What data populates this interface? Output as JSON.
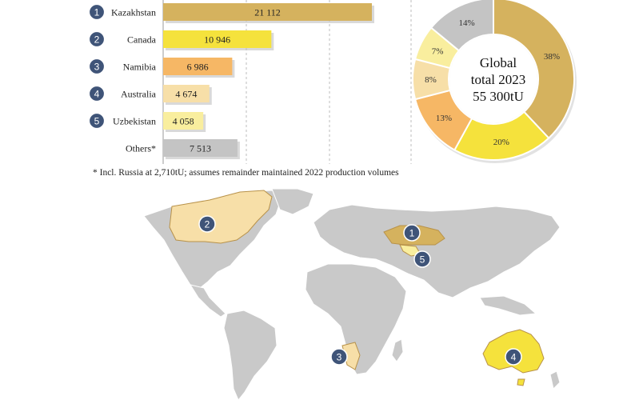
{
  "chart_data": [
    {
      "type": "bar",
      "orientation": "horizontal",
      "categories": [
        "Kazakhstan",
        "Canada",
        "Namibia",
        "Australia",
        "Uzbekistan",
        "Others*"
      ],
      "ranks": [
        "1",
        "2",
        "3",
        "4",
        "5",
        ""
      ],
      "values": [
        21112,
        10946,
        6986,
        4674,
        4058,
        7513
      ],
      "value_labels": [
        "21 112",
        "10 946",
        "6 986",
        "4 674",
        "4 058",
        "7 513"
      ],
      "colors": [
        "#d5b25e",
        "#f5e23c",
        "#f6b765",
        "#f7dfa8",
        "#f9ee9e",
        "#c4c4c4"
      ],
      "xlim": [
        0,
        21112
      ],
      "grid": true
    },
    {
      "type": "pie",
      "donut": true,
      "labels": [
        "38%",
        "20%",
        "13%",
        "8%",
        "7%",
        "14%"
      ],
      "values": [
        38,
        20,
        13,
        8,
        7,
        14
      ],
      "colors": [
        "#d5b25e",
        "#f5e23c",
        "#f6b765",
        "#f7dfa8",
        "#f9ee9e",
        "#c4c4c4"
      ],
      "center_text": [
        "Global",
        "total 2023",
        "55 300tU"
      ]
    }
  ],
  "footnote": "* Incl. Russia at 2,710tU; assumes remainder maintained 2022 production volumes",
  "map": {
    "markers": [
      {
        "label": "1",
        "country": "Kazakhstan"
      },
      {
        "label": "2",
        "country": "Canada"
      },
      {
        "label": "3",
        "country": "Namibia"
      },
      {
        "label": "4",
        "country": "Australia"
      },
      {
        "label": "5",
        "country": "Uzbekistan"
      }
    ],
    "colors": {
      "land": "#c9c9c9",
      "border": "#ffffff",
      "marker": "#3f5478"
    }
  }
}
